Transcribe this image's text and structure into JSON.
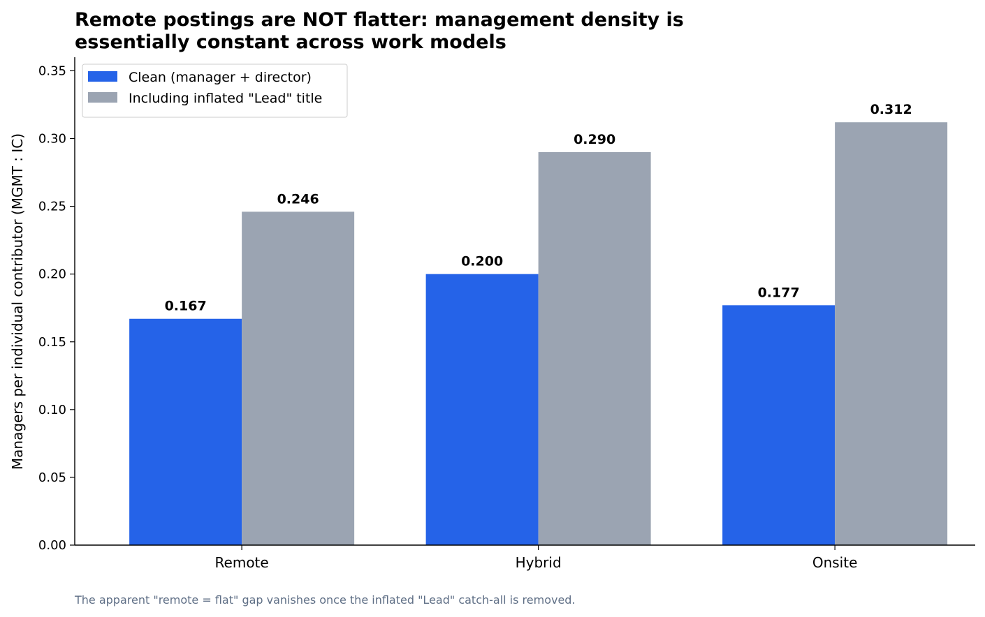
{
  "chart_data": {
    "type": "bar",
    "title_lines": [
      "Remote postings are NOT flatter: management density is",
      "essentially constant across work models"
    ],
    "ylabel": "Managers per individual contributor (MGMT : IC)",
    "xlabel": "",
    "categories": [
      "Remote",
      "Hybrid",
      "Onsite"
    ],
    "series": [
      {
        "name": "Clean (manager + director)",
        "color": "#2563e8",
        "values": [
          0.167,
          0.2,
          0.177
        ]
      },
      {
        "name": "Including inflated \"Lead\" title",
        "color": "#9ba4b2",
        "values": [
          0.246,
          0.29,
          0.312
        ]
      }
    ],
    "value_labels": [
      [
        "0.167",
        "0.200",
        "0.177"
      ],
      [
        "0.246",
        "0.290",
        "0.312"
      ]
    ],
    "ylim": [
      0,
      0.36
    ],
    "yticks": [
      0.0,
      0.05,
      0.1,
      0.15,
      0.2,
      0.25,
      0.3,
      0.35
    ],
    "ytick_labels": [
      "0.00",
      "0.05",
      "0.10",
      "0.15",
      "0.20",
      "0.25",
      "0.30",
      "0.35"
    ],
    "grid": false,
    "legend_position": "top-left",
    "footnote": "The apparent \"remote = flat\" gap vanishes once the inflated \"Lead\" catch-all is removed."
  }
}
